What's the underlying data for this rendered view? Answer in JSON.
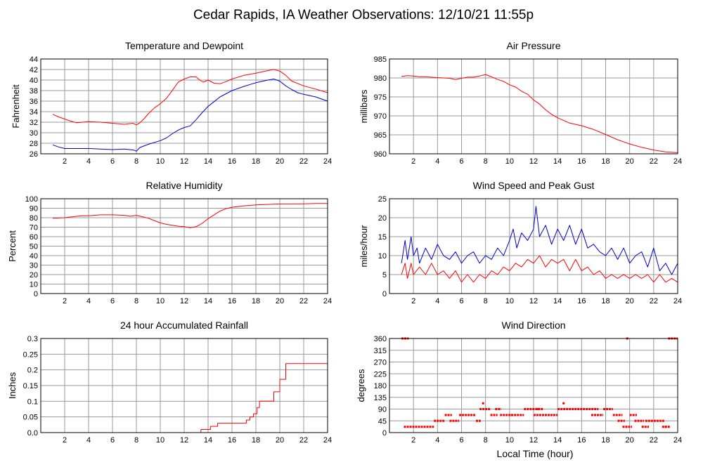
{
  "page": {
    "title": "Cedar Rapids, IA Weather Observations: 12/10/21 11:55p",
    "xlabel": "Local Time (hour)"
  },
  "colors": {
    "series_red": "#ff0000",
    "series_blue": "#0000cc",
    "grid": "#999999",
    "frame": "#000000"
  },
  "chart_data": [
    {
      "id": "temp",
      "type": "line",
      "title": "Temperature and Dewpoint",
      "ylabel": "Fahrenheit",
      "xlim": [
        0,
        24
      ],
      "ylim": [
        26,
        44
      ],
      "xticks": [
        2,
        4,
        6,
        8,
        10,
        12,
        14,
        16,
        18,
        20,
        22,
        24
      ],
      "yticks": [
        26,
        28,
        30,
        32,
        34,
        36,
        38,
        40,
        42,
        44
      ],
      "grid": true,
      "series": [
        {
          "color": "#ff0000",
          "x": [
            1.0,
            1.5,
            2.0,
            2.5,
            3.0,
            3.5,
            4.0,
            5.0,
            6.0,
            7.0,
            7.7,
            8.0,
            8.3,
            8.7,
            9.0,
            9.5,
            10.0,
            10.5,
            11.0,
            11.5,
            12.0,
            12.5,
            13.0,
            13.3,
            13.6,
            14.0,
            14.5,
            15.0,
            15.5,
            16.0,
            17.0,
            18.0,
            19.0,
            19.5,
            20.0,
            20.5,
            21.0,
            22.0,
            23.0,
            24.0
          ],
          "y": [
            33.5,
            33.0,
            32.6,
            32.2,
            31.9,
            32.0,
            32.1,
            32.0,
            31.8,
            31.6,
            31.8,
            31.5,
            31.9,
            32.8,
            33.6,
            34.7,
            35.5,
            36.5,
            38.0,
            39.6,
            40.2,
            40.6,
            40.6,
            40.0,
            39.6,
            40.0,
            39.4,
            39.3,
            39.7,
            40.2,
            40.9,
            41.3,
            41.8,
            42.0,
            41.7,
            40.9,
            39.8,
            38.9,
            38.3,
            37.6
          ]
        },
        {
          "color": "#0000cc",
          "x": [
            1.0,
            1.5,
            2.0,
            3.0,
            4.0,
            5.0,
            6.0,
            7.0,
            7.8,
            8.0,
            8.3,
            9.0,
            10.0,
            10.5,
            11.0,
            11.5,
            12.0,
            12.5,
            13.0,
            13.5,
            14.0,
            14.5,
            15.0,
            16.0,
            17.0,
            18.0,
            19.0,
            19.5,
            20.0,
            20.5,
            21.0,
            21.5,
            22.0,
            23.0,
            24.0
          ],
          "y": [
            27.7,
            27.3,
            27.0,
            27.0,
            27.0,
            26.9,
            26.8,
            26.9,
            26.7,
            26.5,
            27.2,
            27.8,
            28.5,
            29.0,
            29.8,
            30.5,
            31.0,
            31.3,
            32.5,
            33.8,
            35.0,
            35.9,
            36.8,
            38.0,
            38.8,
            39.5,
            40.0,
            40.2,
            39.8,
            38.9,
            38.2,
            37.6,
            37.3,
            36.8,
            36.0
          ]
        }
      ]
    },
    {
      "id": "pressure",
      "type": "line",
      "title": "Air Pressure",
      "ylabel": "millibars",
      "xlim": [
        0,
        24
      ],
      "ylim": [
        960,
        985
      ],
      "xticks": [
        2,
        4,
        6,
        8,
        10,
        12,
        14,
        16,
        18,
        20,
        22,
        24
      ],
      "yticks": [
        960,
        965,
        970,
        975,
        980,
        985
      ],
      "grid": true,
      "series": [
        {
          "color": "#ff0000",
          "x": [
            1.0,
            1.5,
            2.0,
            2.5,
            3.0,
            4.0,
            5.0,
            5.5,
            6.0,
            6.5,
            7.0,
            7.5,
            8.0,
            8.5,
            9.0,
            9.5,
            10.0,
            10.5,
            11.0,
            11.5,
            12.0,
            12.5,
            13.0,
            13.5,
            14.0,
            15.0,
            16.0,
            17.0,
            18.0,
            19.0,
            20.0,
            21.0,
            22.0,
            23.0,
            24.0
          ],
          "y": [
            980.4,
            980.6,
            980.5,
            980.3,
            980.3,
            980.1,
            979.9,
            979.6,
            979.9,
            980.2,
            980.2,
            980.5,
            980.9,
            980.3,
            979.6,
            979.1,
            978.2,
            977.6,
            976.5,
            975.7,
            974.2,
            973.1,
            971.6,
            970.4,
            969.5,
            968.1,
            967.4,
            966.4,
            965.1,
            963.7,
            962.6,
            961.7,
            961.0,
            960.5,
            960.3
          ]
        }
      ]
    },
    {
      "id": "humidity",
      "type": "line",
      "title": "Relative Humidity",
      "ylabel": "Percent",
      "xlim": [
        0,
        24
      ],
      "ylim": [
        0,
        100
      ],
      "xticks": [
        2,
        4,
        6,
        8,
        10,
        12,
        14,
        16,
        18,
        20,
        22,
        24
      ],
      "yticks": [
        0,
        10,
        20,
        30,
        40,
        50,
        60,
        70,
        80,
        90,
        100
      ],
      "grid": true,
      "series": [
        {
          "color": "#ff0000",
          "x": [
            1.0,
            2.0,
            3.0,
            3.5,
            4.0,
            5.0,
            6.0,
            7.0,
            7.5,
            8.0,
            8.5,
            9.0,
            9.5,
            10.0,
            10.5,
            11.0,
            11.5,
            12.0,
            12.5,
            13.0,
            13.5,
            14.0,
            14.5,
            15.0,
            15.5,
            16.0,
            17.0,
            18.0,
            19.0,
            20.0,
            21.0,
            22.0,
            23.0,
            24.0
          ],
          "y": [
            79.5,
            80.0,
            81.5,
            82.0,
            82.0,
            83.0,
            83.0,
            82.5,
            81.5,
            82.5,
            81.0,
            79.5,
            77.0,
            74.5,
            73.0,
            72.0,
            71.0,
            70.5,
            69.5,
            70.5,
            74.0,
            79.0,
            83.0,
            87.0,
            89.5,
            91.0,
            92.5,
            93.5,
            94.0,
            94.5,
            94.5,
            94.7,
            95.0,
            95.0
          ]
        }
      ]
    },
    {
      "id": "wind",
      "type": "line",
      "title": "Wind Speed and Peak Gust",
      "ylabel": "miles/hour",
      "xlim": [
        0,
        24
      ],
      "ylim": [
        0,
        25
      ],
      "xticks": [
        2,
        4,
        6,
        8,
        10,
        12,
        14,
        16,
        18,
        20,
        22,
        24
      ],
      "yticks": [
        0,
        5,
        10,
        15,
        20,
        25
      ],
      "grid": true,
      "series": [
        {
          "color": "#0000cc",
          "x": [
            1.0,
            1.3,
            1.5,
            1.8,
            2.0,
            2.3,
            2.5,
            3.0,
            3.5,
            4.0,
            4.5,
            5.0,
            5.5,
            6.0,
            6.5,
            7.0,
            7.5,
            8.0,
            8.5,
            9.0,
            9.5,
            10.0,
            10.3,
            10.6,
            11.0,
            11.5,
            12.0,
            12.2,
            12.5,
            13.0,
            13.5,
            14.0,
            14.5,
            15.0,
            15.5,
            16.0,
            16.5,
            17.0,
            17.5,
            18.0,
            18.5,
            19.0,
            19.5,
            20.0,
            20.5,
            21.0,
            21.5,
            22.0,
            22.5,
            23.0,
            23.5,
            24.0
          ],
          "y": [
            8,
            14,
            9,
            15,
            10,
            12,
            8,
            12,
            9,
            13,
            10,
            9,
            11,
            8,
            10,
            11,
            8,
            10,
            9,
            12,
            10,
            14,
            17,
            12,
            16,
            14,
            17,
            23,
            15,
            18,
            13,
            17,
            14,
            18,
            13,
            17,
            12,
            13,
            11,
            10,
            12,
            9,
            12,
            8,
            10,
            11,
            7,
            12,
            6,
            8,
            5,
            8
          ]
        },
        {
          "color": "#ff0000",
          "x": [
            1.0,
            1.3,
            1.5,
            1.8,
            2.0,
            2.5,
            3.0,
            3.5,
            4.0,
            4.5,
            5.0,
            5.5,
            6.0,
            6.5,
            7.0,
            7.5,
            8.0,
            8.5,
            9.0,
            9.5,
            10.0,
            10.5,
            11.0,
            11.5,
            12.0,
            12.5,
            13.0,
            13.5,
            14.0,
            14.5,
            15.0,
            15.5,
            16.0,
            16.5,
            17.0,
            17.5,
            18.0,
            18.5,
            19.0,
            19.5,
            20.0,
            20.5,
            21.0,
            21.5,
            22.0,
            22.5,
            23.0,
            23.5,
            24.0
          ],
          "y": [
            5,
            8,
            4,
            8,
            5,
            7,
            5,
            8,
            5,
            6,
            4,
            6,
            3,
            5,
            3,
            5,
            4,
            6,
            5,
            7,
            6,
            8,
            7,
            9,
            8,
            10,
            7,
            9,
            8,
            9,
            6,
            9,
            6,
            7,
            5,
            6,
            4,
            5,
            4,
            5,
            4,
            5,
            4,
            5,
            3,
            5,
            3,
            4,
            3
          ]
        }
      ]
    },
    {
      "id": "rain",
      "type": "line",
      "title": "24 hour Accumulated Rainfall",
      "ylabel": "Inches",
      "xlim": [
        0,
        24
      ],
      "ylim": [
        0,
        0.3
      ],
      "xticks": [
        2,
        4,
        6,
        8,
        10,
        12,
        14,
        16,
        18,
        20,
        22,
        24
      ],
      "yticks": [
        0,
        0.05,
        0.1,
        0.15,
        0.2,
        0.25,
        0.3
      ],
      "ytick_labels": [
        "0.0",
        "0.05",
        "0.1",
        "0.15",
        "0.2",
        "0.25",
        "0.3"
      ],
      "grid": true,
      "series": [
        {
          "color": "#ff0000",
          "x": [
            1.0,
            13.4,
            13.4,
            14.2,
            14.2,
            14.8,
            14.8,
            17.2,
            17.2,
            17.5,
            17.5,
            17.8,
            17.8,
            18.1,
            18.1,
            18.3,
            18.3,
            18.6,
            18.6,
            19.5,
            19.5,
            20.0,
            20.0,
            20.5,
            20.5,
            24.0
          ],
          "y": [
            0,
            0,
            0.01,
            0.01,
            0.02,
            0.02,
            0.03,
            0.03,
            0.04,
            0.04,
            0.05,
            0.05,
            0.06,
            0.06,
            0.08,
            0.08,
            0.1,
            0.1,
            0.1,
            0.1,
            0.13,
            0.13,
            0.17,
            0.17,
            0.22,
            0.22
          ]
        }
      ]
    },
    {
      "id": "direction",
      "type": "scatter",
      "title": "Wind Direction",
      "ylabel": "degrees",
      "xlim": [
        0,
        24
      ],
      "ylim": [
        0,
        360
      ],
      "xticks": [
        2,
        4,
        6,
        8,
        10,
        12,
        14,
        16,
        18,
        20,
        22,
        24
      ],
      "yticks": [
        0,
        45,
        90,
        135,
        180,
        225,
        270,
        315,
        360
      ],
      "grid": true,
      "series": [
        {
          "color": "#ff0000",
          "segments": [
            {
              "x0": 1.0,
              "x1": 1.6,
              "y": 360
            },
            {
              "x0": 1.2,
              "x1": 3.7,
              "y": 22
            },
            {
              "x0": 3.7,
              "x1": 4.6,
              "y": 45
            },
            {
              "x0": 4.6,
              "x1": 5.2,
              "y": 67
            },
            {
              "x0": 5.0,
              "x1": 5.8,
              "y": 45
            },
            {
              "x0": 5.8,
              "x1": 7.2,
              "y": 67
            },
            {
              "x0": 7.2,
              "x1": 7.6,
              "y": 45
            },
            {
              "x0": 7.5,
              "x1": 8.4,
              "y": 90
            },
            {
              "x0": 8.4,
              "x1": 9.0,
              "y": 67
            },
            {
              "x0": 8.8,
              "x1": 9.3,
              "y": 90
            },
            {
              "x0": 9.2,
              "x1": 11.2,
              "y": 67
            },
            {
              "x0": 11.2,
              "x1": 12.8,
              "y": 90
            },
            {
              "x0": 12.0,
              "x1": 14.0,
              "y": 67
            },
            {
              "x0": 14.0,
              "x1": 17.4,
              "y": 90
            },
            {
              "x0": 16.8,
              "x1": 17.8,
              "y": 67
            },
            {
              "x0": 17.8,
              "x1": 18.6,
              "y": 90
            },
            {
              "x0": 18.6,
              "x1": 19.4,
              "y": 67
            },
            {
              "x0": 19.0,
              "x1": 19.6,
              "y": 45
            },
            {
              "x0": 19.4,
              "x1": 20.2,
              "y": 22
            },
            {
              "x0": 20.0,
              "x1": 20.6,
              "y": 67
            },
            {
              "x0": 20.4,
              "x1": 21.2,
              "y": 45
            },
            {
              "x0": 21.0,
              "x1": 21.6,
              "y": 22
            },
            {
              "x0": 21.3,
              "x1": 22.9,
              "y": 45
            },
            {
              "x0": 22.7,
              "x1": 23.4,
              "y": 22
            },
            {
              "x0": 23.2,
              "x1": 24.0,
              "y": 360
            }
          ],
          "points": [
            [
              7.8,
              112
            ],
            [
              14.5,
              112
            ],
            [
              19.8,
              360
            ],
            [
              12.4,
              90
            ],
            [
              10.2,
              67
            ],
            [
              23.0,
              22
            ]
          ]
        }
      ]
    }
  ]
}
